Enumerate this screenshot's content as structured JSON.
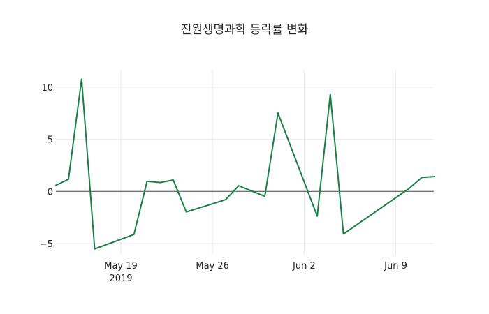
{
  "chart_data": {
    "type": "line",
    "title": "진원생명과학 등락률 변화",
    "xlabel": "",
    "ylabel": "",
    "x_tick_labels": [
      "May 19",
      "May 26",
      "Jun 2",
      "Jun 9"
    ],
    "x_tick_sublabel": "2019",
    "y_tick_labels": [
      "−5",
      "0",
      "5",
      "10"
    ],
    "y_ticks": [
      -5,
      0,
      5,
      10
    ],
    "ylim": [
      -6.1,
      11.7
    ],
    "xlim": [
      "2019-05-14",
      "2019-06-12"
    ],
    "grid": true,
    "legend": false,
    "line_color": "#1a7f45",
    "x": [
      "2019-05-14",
      "2019-05-15",
      "2019-05-16",
      "2019-05-17",
      "2019-05-20",
      "2019-05-21",
      "2019-05-22",
      "2019-05-23",
      "2019-05-24",
      "2019-05-27",
      "2019-05-28",
      "2019-05-30",
      "2019-05-31",
      "2019-06-03",
      "2019-06-04",
      "2019-06-05",
      "2019-06-10",
      "2019-06-11",
      "2019-06-12"
    ],
    "series": [
      {
        "name": "등락률",
        "values": [
          0.56,
          1.16,
          10.78,
          -5.52,
          -4.14,
          0.98,
          0.85,
          1.09,
          -1.97,
          -0.8,
          0.54,
          -0.47,
          7.52,
          -2.37,
          9.33,
          -4.09,
          0.27,
          1.34,
          1.43
        ]
      }
    ]
  }
}
